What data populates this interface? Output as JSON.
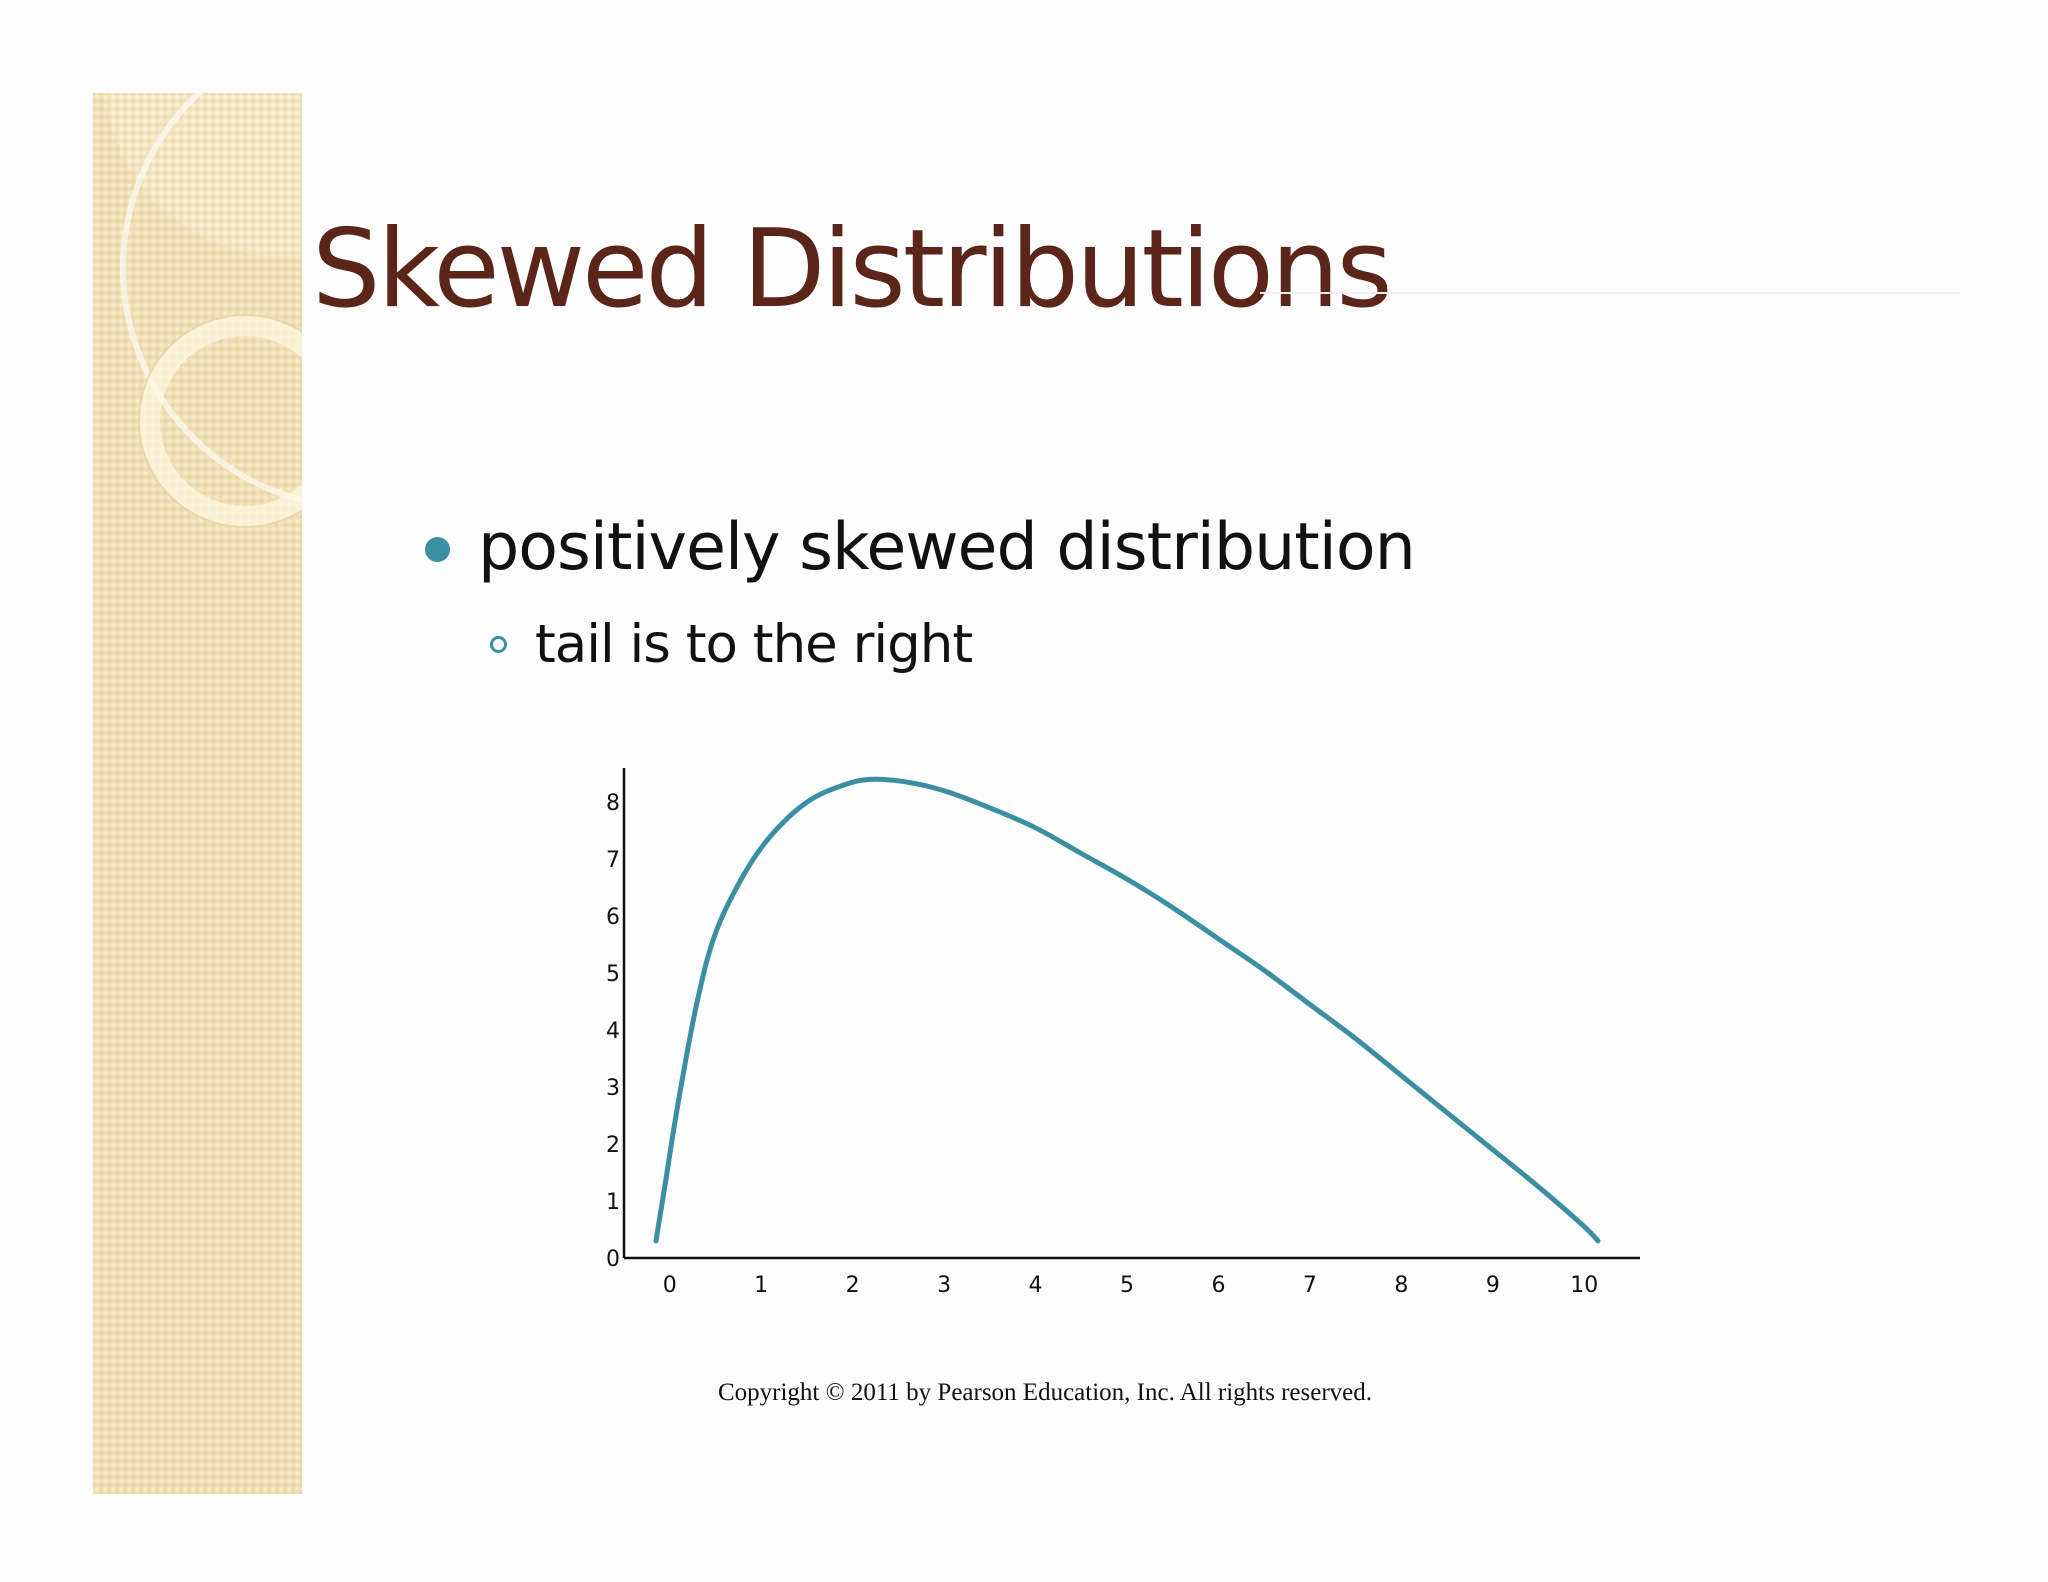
{
  "slide": {
    "title": "Skewed Distributions",
    "bullet": "positively skewed distribution",
    "sub_bullet": "tail is to the right",
    "copyright": "Copyright © 2011 by Pearson Education, Inc. All rights reserved."
  },
  "colors": {
    "title": "#5c2519",
    "accent": "#3a8fa3",
    "strip": "#f1dfb5"
  },
  "chart_data": {
    "type": "line",
    "title": "",
    "xlabel": "",
    "ylabel": "",
    "xlim": [
      -0.5,
      10.5
    ],
    "ylim": [
      0,
      8.6
    ],
    "x_ticks": [
      "0",
      "1",
      "2",
      "3",
      "4",
      "5",
      "6",
      "7",
      "8",
      "9",
      "10"
    ],
    "y_ticks": [
      "0",
      "1",
      "2",
      "3",
      "4",
      "5",
      "6",
      "7",
      "8"
    ],
    "grid": false,
    "legend": "none",
    "series": [
      {
        "name": "",
        "color": "#3a8fa3",
        "x": [
          -0.15,
          -0.05,
          0.1,
          0.3,
          0.5,
          0.8,
          1.1,
          1.5,
          1.9,
          2.2,
          2.6,
          3.0,
          3.5,
          4.0,
          4.5,
          5.0,
          5.5,
          6.0,
          6.5,
          7.0,
          7.5,
          8.0,
          8.5,
          9.0,
          9.5,
          10.0,
          10.15
        ],
        "y": [
          0.3,
          1.3,
          2.8,
          4.5,
          5.7,
          6.7,
          7.4,
          8.0,
          8.3,
          8.4,
          8.35,
          8.2,
          7.9,
          7.55,
          7.1,
          6.65,
          6.15,
          5.6,
          5.05,
          4.45,
          3.85,
          3.2,
          2.55,
          1.9,
          1.25,
          0.55,
          0.3
        ]
      }
    ]
  }
}
